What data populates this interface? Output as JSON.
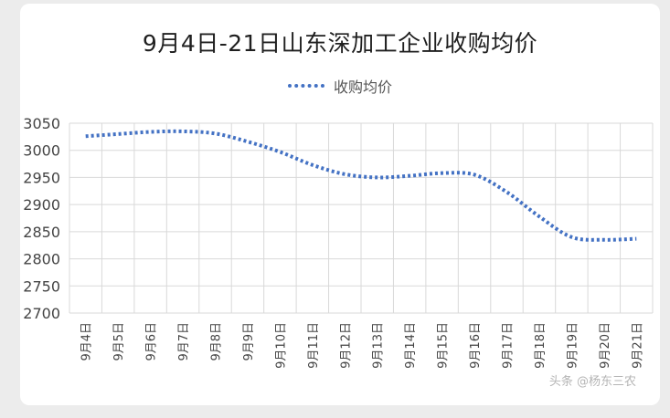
{
  "chart_data": {
    "type": "line",
    "title": "9月4日-21日山东深加工企业收购均价",
    "categories": [
      "9月4日",
      "9月5日",
      "9月6日",
      "9月7日",
      "9月8日",
      "9月9日",
      "9月10日",
      "9月11日",
      "9月12日",
      "9月13日",
      "9月14日",
      "9月15日",
      "9月16日",
      "9月17日",
      "9月18日",
      "9月19日",
      "9月20日",
      "9月21日"
    ],
    "series": [
      {
        "name": "收购均价",
        "values": [
          3026,
          3030,
          3034,
          3035,
          3031,
          3016,
          2997,
          2973,
          2956,
          2950,
          2953,
          2958,
          2955,
          2923,
          2878,
          2840,
          2835,
          2837
        ]
      }
    ],
    "xlabel": "",
    "ylabel": "",
    "ylim": [
      2700,
      3050
    ],
    "yticks": [
      2700,
      2750,
      2800,
      2850,
      2900,
      2950,
      3000,
      3050
    ],
    "grid": true,
    "legend": "top",
    "line_style": "dotted",
    "color": "#4472c4"
  },
  "watermark": "头条 @杨东三农"
}
